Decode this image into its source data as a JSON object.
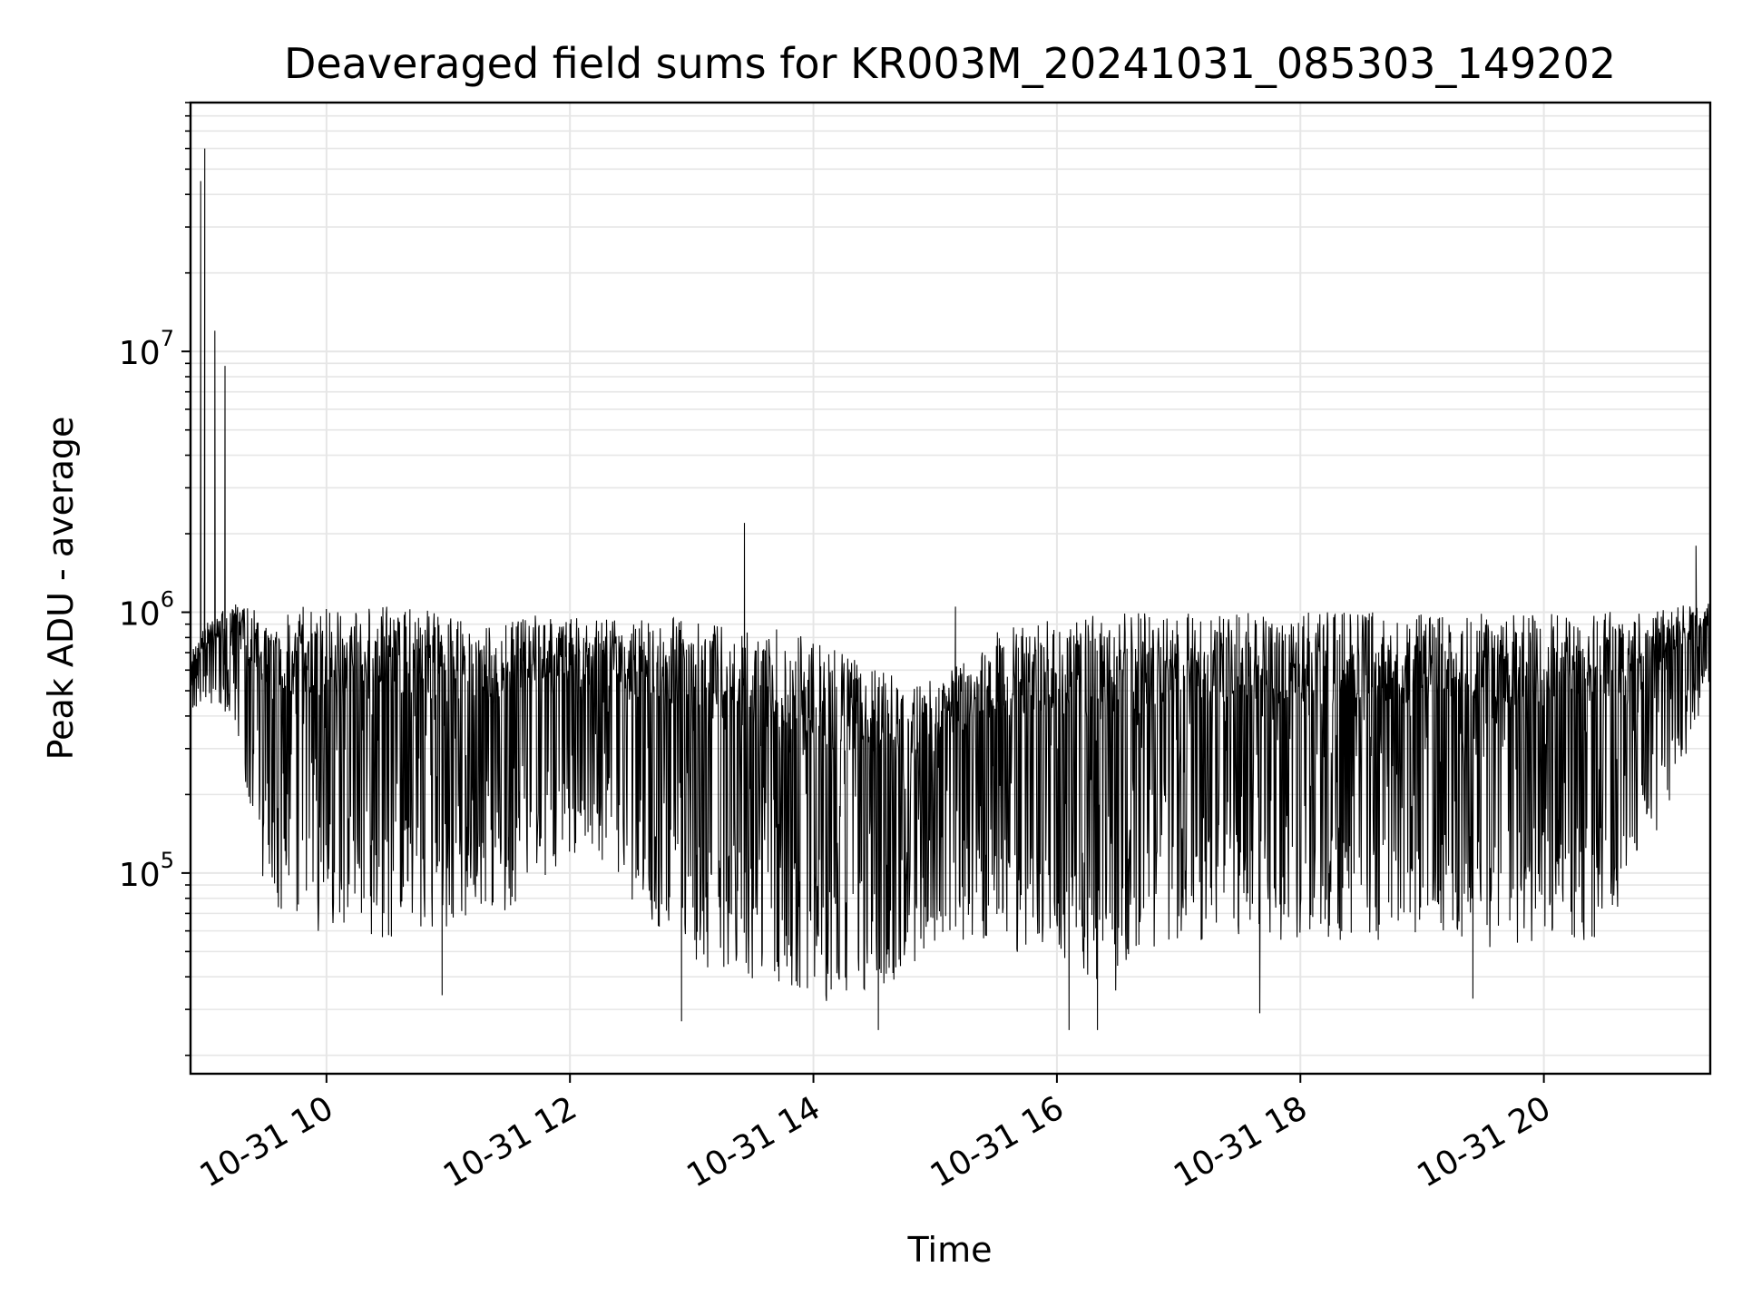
{
  "chart_data": {
    "type": "line",
    "title": "Deaveraged field sums for KR003M_20241031_085303_149202",
    "xlabel": "Time",
    "ylabel": "Peak ADU - average",
    "yscale": "log",
    "grid": true,
    "line_color": "#000000",
    "grid_color": "#e6e6e6",
    "xlim": [
      "2024-10-31 08:53",
      "2024-10-31 21:22"
    ],
    "ylim": [
      17000,
      90000000
    ],
    "x_ticks": [
      {
        "x": "2024-10-31 10:00",
        "label": "10-31 10"
      },
      {
        "x": "2024-10-31 12:00",
        "label": "10-31 12"
      },
      {
        "x": "2024-10-31 14:00",
        "label": "10-31 14"
      },
      {
        "x": "2024-10-31 16:00",
        "label": "10-31 16"
      },
      {
        "x": "2024-10-31 18:00",
        "label": "10-31 18"
      },
      {
        "x": "2024-10-31 20:00",
        "label": "10-31 20"
      }
    ],
    "y_ticks": [
      {
        "value": 100000,
        "base": "10",
        "exp": "5"
      },
      {
        "value": 1000000,
        "base": "10",
        "exp": "6"
      },
      {
        "value": 10000000,
        "base": "10",
        "exp": "7"
      }
    ],
    "series": [
      {
        "envelope": {
          "x": [
            "2024-10-31 08:53",
            "2024-10-31 09:00",
            "2024-10-31 09:15",
            "2024-10-31 09:30",
            "2024-10-31 09:45",
            "2024-10-31 10:00",
            "2024-10-31 10:30",
            "2024-10-31 11:00",
            "2024-10-31 11:30",
            "2024-10-31 12:00",
            "2024-10-31 12:30",
            "2024-10-31 13:00",
            "2024-10-31 13:30",
            "2024-10-31 14:00",
            "2024-10-31 14:30",
            "2024-10-31 15:00",
            "2024-10-31 15:30",
            "2024-10-31 16:00",
            "2024-10-31 16:30",
            "2024-10-31 17:00",
            "2024-10-31 17:30",
            "2024-10-31 18:00",
            "2024-10-31 18:30",
            "2024-10-31 19:00",
            "2024-10-31 19:30",
            "2024-10-31 20:00",
            "2024-10-31 20:30",
            "2024-10-31 21:00",
            "2024-10-31 21:22"
          ],
          "upper": [
            700000,
            900000,
            1100000,
            1000000,
            1050000,
            1050000,
            1050000,
            1000000,
            1000000,
            950000,
            950000,
            950000,
            900000,
            800000,
            600000,
            550000,
            850000,
            950000,
            1000000,
            1000000,
            1000000,
            1000000,
            1000000,
            1000000,
            1000000,
            1000000,
            1000000,
            1050000,
            1100000
          ],
          "lower": [
            400000,
            450000,
            380000,
            80000,
            60000,
            60000,
            55000,
            60000,
            70000,
            120000,
            80000,
            45000,
            38000,
            32000,
            30000,
            55000,
            55000,
            40000,
            35000,
            55000,
            55000,
            55000,
            55000,
            55000,
            50000,
            55000,
            55000,
            150000,
            550000
          ]
        },
        "spikes": [
          {
            "x": "2024-10-31 08:58",
            "y": 45000000
          },
          {
            "x": "2024-10-31 09:00",
            "y": 60000000
          },
          {
            "x": "2024-10-31 09:05",
            "y": 12000000
          },
          {
            "x": "2024-10-31 09:10",
            "y": 8800000
          },
          {
            "x": "2024-10-31 13:26",
            "y": 2200000
          },
          {
            "x": "2024-10-31 15:10",
            "y": 1050000
          },
          {
            "x": "2024-10-31 21:15",
            "y": 1800000
          }
        ],
        "dips": [
          {
            "x": "2024-10-31 10:57",
            "y": 34000
          },
          {
            "x": "2024-10-31 12:55",
            "y": 27000
          },
          {
            "x": "2024-10-31 14:32",
            "y": 25000
          },
          {
            "x": "2024-10-31 16:06",
            "y": 25000
          },
          {
            "x": "2024-10-31 16:20",
            "y": 25000
          },
          {
            "x": "2024-10-31 17:40",
            "y": 29000
          },
          {
            "x": "2024-10-31 19:25",
            "y": 33000
          }
        ]
      }
    ]
  }
}
